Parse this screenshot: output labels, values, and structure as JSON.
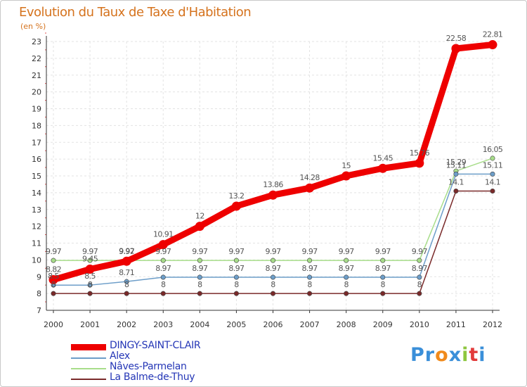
{
  "title": "Evolution du Taux de Taxe d'Habitation",
  "subtitle": "(en %)",
  "logo": {
    "text": "Proxiti",
    "letters": [
      "P",
      "r",
      "o",
      "x",
      "i",
      "t",
      "i"
    ],
    "colors": [
      "#3a8fd9",
      "#3a8fd9",
      "#f08a1c",
      "#3a8fd9",
      "#8ec63f",
      "#e23b3b",
      "#3a8fd9"
    ]
  },
  "chart_data": {
    "type": "line",
    "title": "Evolution du Taux de Taxe d'Habitation",
    "ylabel": "(en %)",
    "xlabel": "",
    "ylim": [
      7,
      23
    ],
    "yticks": [
      7,
      8,
      9,
      10,
      11,
      12,
      13,
      14,
      15,
      16,
      17,
      18,
      19,
      20,
      21,
      22,
      23
    ],
    "categories": [
      "2000",
      "2001",
      "2002",
      "2003",
      "2004",
      "2005",
      "2006",
      "2007",
      "2008",
      "2009",
      "2010",
      "2011",
      "2012"
    ],
    "grid": true,
    "legend_position": "bottom-left",
    "series": [
      {
        "name": "La Balme-de-Thuy",
        "color": "#7a2a2a",
        "values": [
          8,
          8,
          8,
          8,
          8,
          8,
          8,
          8,
          8,
          8,
          8,
          14.1,
          14.1
        ],
        "labels": [
          "8",
          "8",
          "8",
          "8",
          "8",
          "8",
          "8",
          "8",
          "8",
          "8",
          "8",
          "14.1",
          "14.1"
        ]
      },
      {
        "name": "Nâves-Parmelan",
        "color": "#a8dd8a",
        "values": [
          9.97,
          9.97,
          9.97,
          9.97,
          9.97,
          9.97,
          9.97,
          9.97,
          9.97,
          9.97,
          9.97,
          15.29,
          16.05
        ],
        "labels": [
          "9.97",
          "9.97",
          "9.97",
          "9.97",
          "9.97",
          "9.97",
          "9.97",
          "9.97",
          "9.97",
          "9.97",
          "9.97",
          "15.29",
          "16.05"
        ]
      },
      {
        "name": "Alex",
        "color": "#6d9ec9",
        "values": [
          8.5,
          8.5,
          8.71,
          8.97,
          8.97,
          8.97,
          8.97,
          8.97,
          8.97,
          8.97,
          8.97,
          15.11,
          15.11
        ],
        "labels": [
          "8.5",
          "8.5",
          "8.71",
          "8.97",
          "8.97",
          "8.97",
          "8.97",
          "8.97",
          "8.97",
          "8.97",
          "8.97",
          "15.11",
          "15.11"
        ]
      },
      {
        "name": "DINGY-SAINT-CLAIR",
        "color": "#ee0000",
        "values": [
          8.82,
          9.45,
          9.92,
          10.91,
          12,
          13.2,
          13.86,
          14.28,
          15,
          15.45,
          15.76,
          22.58,
          22.81
        ],
        "labels": [
          "8.82",
          "9.45",
          "9.92",
          "10.91",
          "12",
          "13.2",
          "13.86",
          "14.28",
          "15",
          "15.45",
          "15.76",
          "22.58",
          "22.81"
        ]
      }
    ],
    "legend": [
      {
        "name": "DINGY-SAINT-CLAIR",
        "color": "#ee0000",
        "thick": true
      },
      {
        "name": "Alex",
        "color": "#6d9ec9",
        "thick": false
      },
      {
        "name": "Nâves-Parmelan",
        "color": "#a8dd8a",
        "thick": false
      },
      {
        "name": "La Balme-de-Thuy",
        "color": "#7a2a2a",
        "thick": false
      }
    ]
  }
}
